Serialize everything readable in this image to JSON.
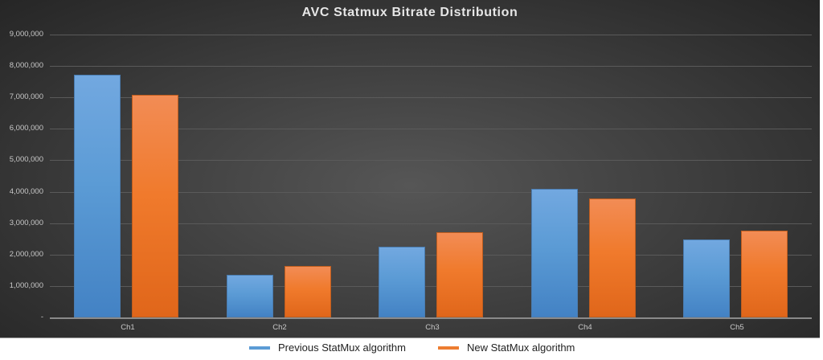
{
  "chart_data": {
    "type": "bar",
    "title": "AVC Statmux Bitrate Distribution",
    "xlabel": "",
    "ylabel": "",
    "categories": [
      "Ch1",
      "Ch2",
      "Ch3",
      "Ch4",
      "Ch5"
    ],
    "series": [
      {
        "name": "Previous StatMux algorithm",
        "color": "#5b9bd5",
        "values": [
          7720000,
          1360000,
          2250000,
          4090000,
          2480000
        ]
      },
      {
        "name": "New StatMux algorithm",
        "color": "#ed7d31",
        "values": [
          7080000,
          1640000,
          2710000,
          3790000,
          2760000
        ]
      }
    ],
    "ylim": [
      0,
      9000000
    ],
    "yticks": [
      "-",
      "1,000,000",
      "2,000,000",
      "3,000,000",
      "4,000,000",
      "5,000,000",
      "6,000,000",
      "7,000,000",
      "8,000,000",
      "9,000,000"
    ],
    "grid": true,
    "legend_position": "bottom"
  }
}
